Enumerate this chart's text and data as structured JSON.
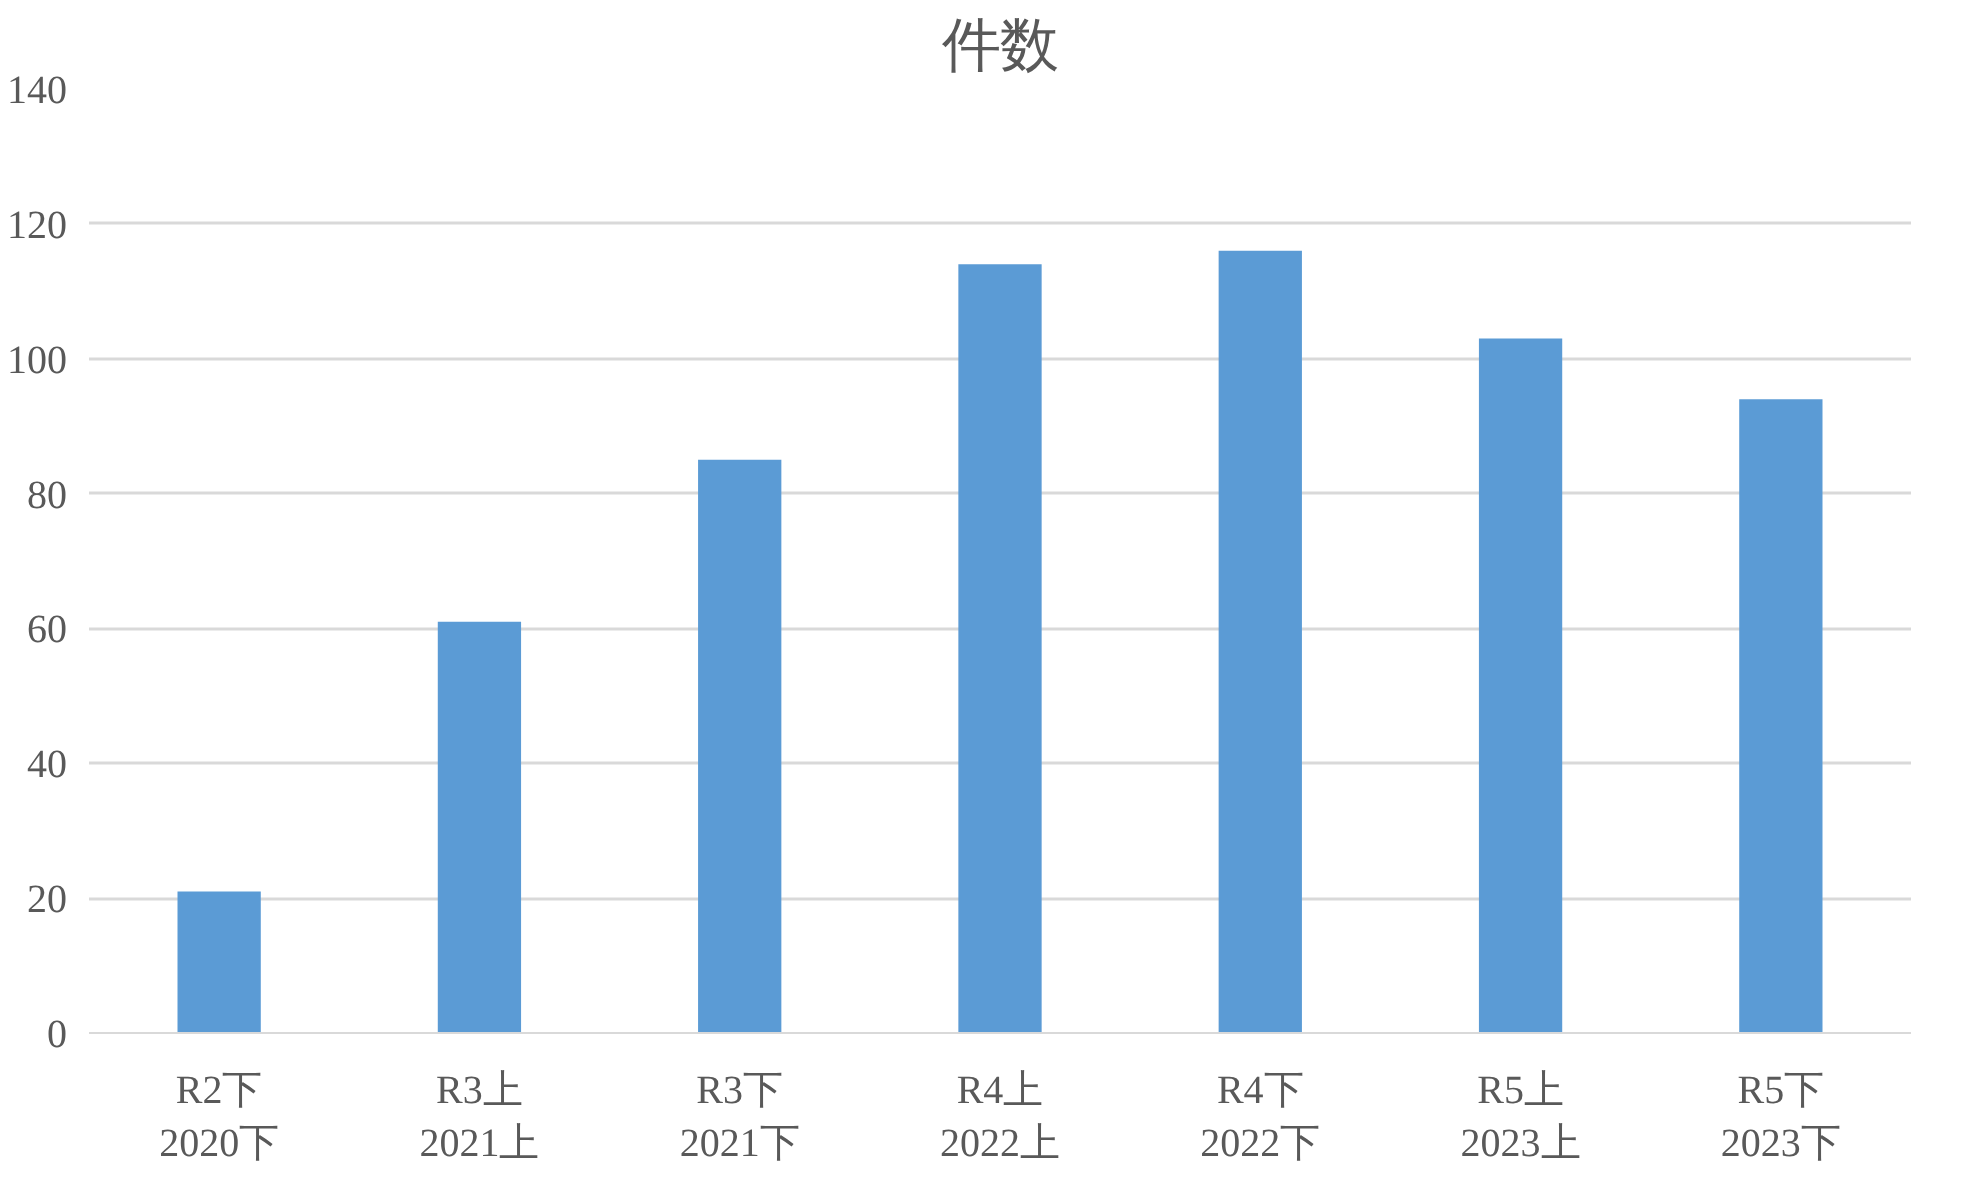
{
  "chart_data": {
    "type": "bar",
    "title": "件数",
    "categories": [
      "R2下\n2020下",
      "R3上\n2021上",
      "R3下\n2021下",
      "R4上\n2022上",
      "R4下\n2022下",
      "R5上\n2023上",
      "R5下\n2023下"
    ],
    "values": [
      21,
      61,
      85,
      114,
      116,
      103,
      94
    ],
    "color": "#5b9bd5",
    "ylim": [
      0,
      140
    ],
    "yticks": [
      0,
      20,
      40,
      60,
      80,
      100,
      120,
      140
    ],
    "grid": "y"
  }
}
